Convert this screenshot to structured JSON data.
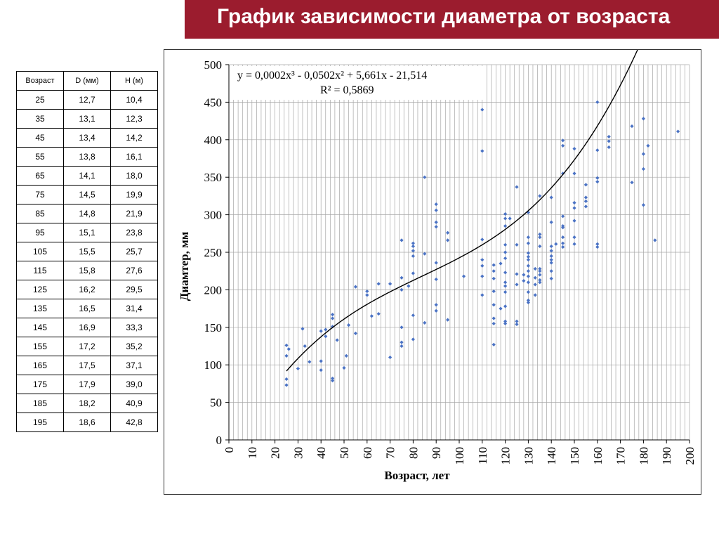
{
  "header": {
    "title": "График зависимости диаметра от возраста"
  },
  "table": {
    "headers": [
      "Возраст",
      "D (мм)",
      "H (м)"
    ],
    "rows": [
      [
        "25",
        "12,7",
        "10,4"
      ],
      [
        "35",
        "13,1",
        "12,3"
      ],
      [
        "45",
        "13,4",
        "14,2"
      ],
      [
        "55",
        "13,8",
        "16,1"
      ],
      [
        "65",
        "14,1",
        "18,0"
      ],
      [
        "75",
        "14,5",
        "19,9"
      ],
      [
        "85",
        "14,8",
        "21,9"
      ],
      [
        "95",
        "15,1",
        "23,8"
      ],
      [
        "105",
        "15,5",
        "25,7"
      ],
      [
        "115",
        "15,8",
        "27,6"
      ],
      [
        "125",
        "16,2",
        "29,5"
      ],
      [
        "135",
        "16,5",
        "31,4"
      ],
      [
        "145",
        "16,9",
        "33,3"
      ],
      [
        "155",
        "17,2",
        "35,2"
      ],
      [
        "165",
        "17,5",
        "37,1"
      ],
      [
        "175",
        "17,9",
        "39,0"
      ],
      [
        "185",
        "18,2",
        "40,9"
      ],
      [
        "195",
        "18,6",
        "42,8"
      ]
    ]
  },
  "chart_data": {
    "type": "scatter",
    "title": "",
    "xlabel": "Возраст, лет",
    "ylabel": "Диамтер, мм",
    "xlim": [
      0,
      200
    ],
    "ylim": [
      0,
      500
    ],
    "x_ticks": [
      0,
      10,
      20,
      30,
      40,
      50,
      60,
      70,
      80,
      90,
      100,
      110,
      120,
      130,
      140,
      150,
      160,
      170,
      180,
      190,
      200
    ],
    "y_ticks": [
      0,
      50,
      100,
      150,
      200,
      250,
      300,
      350,
      400,
      450,
      500
    ],
    "grid": true,
    "point_color": "#4a72c4",
    "trendline": {
      "equation": "y = 0,0002x³ - 0,0502x² + 5,661x - 21,514",
      "r2": "R² = 0,5869",
      "coefficients": [
        0.0002,
        -0.0502,
        5.661,
        -21.514
      ],
      "x_range": [
        25,
        195
      ],
      "color": "#000000"
    },
    "points": [
      [
        25,
        126
      ],
      [
        25,
        112
      ],
      [
        25,
        81
      ],
      [
        25,
        73
      ],
      [
        26,
        121
      ],
      [
        30,
        95
      ],
      [
        32,
        148
      ],
      [
        33,
        125
      ],
      [
        35,
        104
      ],
      [
        40,
        145
      ],
      [
        40,
        105
      ],
      [
        40,
        93
      ],
      [
        42,
        138
      ],
      [
        42,
        147
      ],
      [
        45,
        167
      ],
      [
        45,
        162
      ],
      [
        45,
        151
      ],
      [
        45,
        82
      ],
      [
        45,
        79
      ],
      [
        47,
        133
      ],
      [
        50,
        96
      ],
      [
        51,
        112
      ],
      [
        52,
        153
      ],
      [
        55,
        204
      ],
      [
        55,
        142
      ],
      [
        60,
        198
      ],
      [
        60,
        193
      ],
      [
        62,
        165
      ],
      [
        65,
        208
      ],
      [
        65,
        168
      ],
      [
        70,
        208
      ],
      [
        70,
        110
      ],
      [
        75,
        266
      ],
      [
        75,
        216
      ],
      [
        75,
        200
      ],
      [
        75,
        150
      ],
      [
        75,
        130
      ],
      [
        75,
        125
      ],
      [
        78,
        205
      ],
      [
        80,
        262
      ],
      [
        80,
        258
      ],
      [
        80,
        252
      ],
      [
        80,
        245
      ],
      [
        80,
        222
      ],
      [
        80,
        166
      ],
      [
        80,
        134
      ],
      [
        85,
        350
      ],
      [
        85,
        248
      ],
      [
        85,
        156
      ],
      [
        90,
        314
      ],
      [
        90,
        306
      ],
      [
        90,
        290
      ],
      [
        90,
        284
      ],
      [
        90,
        236
      ],
      [
        90,
        214
      ],
      [
        90,
        180
      ],
      [
        90,
        172
      ],
      [
        95,
        276
      ],
      [
        95,
        266
      ],
      [
        95,
        160
      ],
      [
        102,
        218
      ],
      [
        110,
        440
      ],
      [
        110,
        385
      ],
      [
        110,
        267
      ],
      [
        110,
        240
      ],
      [
        110,
        232
      ],
      [
        110,
        218
      ],
      [
        110,
        193
      ],
      [
        115,
        233
      ],
      [
        115,
        225
      ],
      [
        115,
        215
      ],
      [
        115,
        198
      ],
      [
        115,
        180
      ],
      [
        115,
        162
      ],
      [
        115,
        155
      ],
      [
        115,
        127
      ],
      [
        118,
        175
      ],
      [
        118,
        235
      ],
      [
        120,
        301
      ],
      [
        120,
        295
      ],
      [
        120,
        285
      ],
      [
        120,
        260
      ],
      [
        120,
        250
      ],
      [
        120,
        242
      ],
      [
        120,
        223
      ],
      [
        120,
        210
      ],
      [
        120,
        205
      ],
      [
        120,
        197
      ],
      [
        120,
        178
      ],
      [
        120,
        158
      ],
      [
        120,
        155
      ],
      [
        122,
        295
      ],
      [
        125,
        337
      ],
      [
        125,
        260
      ],
      [
        125,
        221
      ],
      [
        125,
        207
      ],
      [
        125,
        158
      ],
      [
        125,
        154
      ],
      [
        128,
        220
      ],
      [
        128,
        212
      ],
      [
        130,
        303
      ],
      [
        130,
        270
      ],
      [
        130,
        262
      ],
      [
        130,
        249
      ],
      [
        130,
        244
      ],
      [
        130,
        240
      ],
      [
        130,
        232
      ],
      [
        130,
        225
      ],
      [
        130,
        218
      ],
      [
        130,
        210
      ],
      [
        130,
        197
      ],
      [
        130,
        186
      ],
      [
        130,
        183
      ],
      [
        133,
        216
      ],
      [
        133,
        207
      ],
      [
        133,
        193
      ],
      [
        133,
        228
      ],
      [
        135,
        325
      ],
      [
        135,
        274
      ],
      [
        135,
        270
      ],
      [
        135,
        258
      ],
      [
        135,
        228
      ],
      [
        135,
        225
      ],
      [
        135,
        220
      ],
      [
        135,
        213
      ],
      [
        135,
        210
      ],
      [
        140,
        323
      ],
      [
        140,
        290
      ],
      [
        140,
        258
      ],
      [
        140,
        252
      ],
      [
        140,
        245
      ],
      [
        140,
        240
      ],
      [
        140,
        236
      ],
      [
        140,
        225
      ],
      [
        140,
        215
      ],
      [
        142,
        261
      ],
      [
        145,
        399
      ],
      [
        145,
        392
      ],
      [
        145,
        355
      ],
      [
        145,
        298
      ],
      [
        145,
        285
      ],
      [
        145,
        283
      ],
      [
        145,
        270
      ],
      [
        145,
        262
      ],
      [
        145,
        257
      ],
      [
        150,
        388
      ],
      [
        150,
        355
      ],
      [
        150,
        316
      ],
      [
        150,
        309
      ],
      [
        150,
        292
      ],
      [
        150,
        270
      ],
      [
        150,
        261
      ],
      [
        155,
        340
      ],
      [
        155,
        323
      ],
      [
        155,
        318
      ],
      [
        155,
        311
      ],
      [
        160,
        450
      ],
      [
        160,
        386
      ],
      [
        160,
        349
      ],
      [
        160,
        344
      ],
      [
        160,
        261
      ],
      [
        160,
        257
      ],
      [
        165,
        404
      ],
      [
        165,
        398
      ],
      [
        165,
        390
      ],
      [
        175,
        418
      ],
      [
        175,
        343
      ],
      [
        180,
        428
      ],
      [
        180,
        381
      ],
      [
        180,
        361
      ],
      [
        180,
        313
      ],
      [
        182,
        392
      ],
      [
        185,
        266
      ],
      [
        195,
        411
      ]
    ]
  }
}
